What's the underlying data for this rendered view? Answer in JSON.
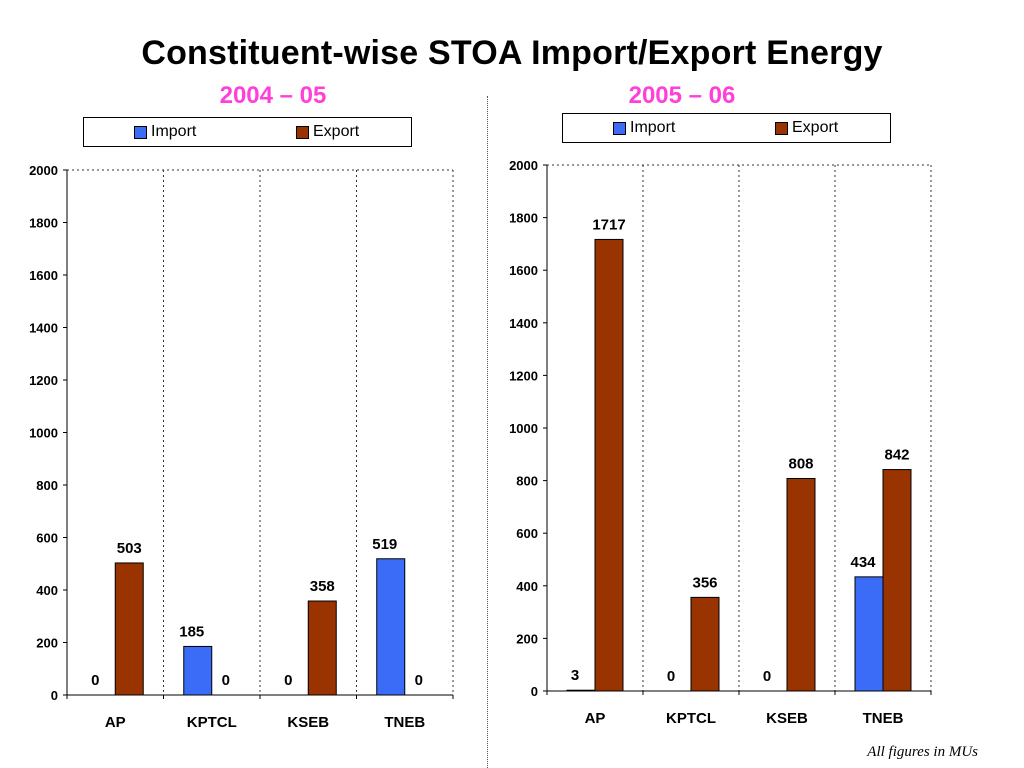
{
  "title": "Constituent-wise STOA Import/Export Energy",
  "footnote": "All figures in MUs",
  "colors": {
    "import": "#3b6cf7",
    "export": "#993300",
    "subtitle": "#ff3fd8"
  },
  "chart_data": [
    {
      "type": "bar",
      "title": "2004 – 05",
      "categories": [
        "AP",
        "KPTCL",
        "KSEB",
        "TNEB"
      ],
      "series": [
        {
          "name": "Import",
          "values": [
            0,
            185,
            0,
            519
          ]
        },
        {
          "name": "Export",
          "values": [
            503,
            0,
            358,
            0
          ]
        }
      ],
      "ylim": [
        0,
        2000
      ],
      "yticks": [
        0,
        200,
        400,
        600,
        800,
        1000,
        1200,
        1400,
        1600,
        1800,
        2000
      ],
      "grid": true,
      "legend": "top"
    },
    {
      "type": "bar",
      "title": "2005 – 06",
      "categories": [
        "AP",
        "KPTCL",
        "KSEB",
        "TNEB"
      ],
      "series": [
        {
          "name": "Import",
          "values": [
            3,
            0,
            0,
            434
          ]
        },
        {
          "name": "Export",
          "values": [
            1717,
            356,
            808,
            842
          ]
        }
      ],
      "ylim": [
        0,
        2000
      ],
      "yticks": [
        0,
        200,
        400,
        600,
        800,
        1000,
        1200,
        1400,
        1600,
        1800,
        2000
      ],
      "grid": true,
      "legend": "top"
    }
  ]
}
